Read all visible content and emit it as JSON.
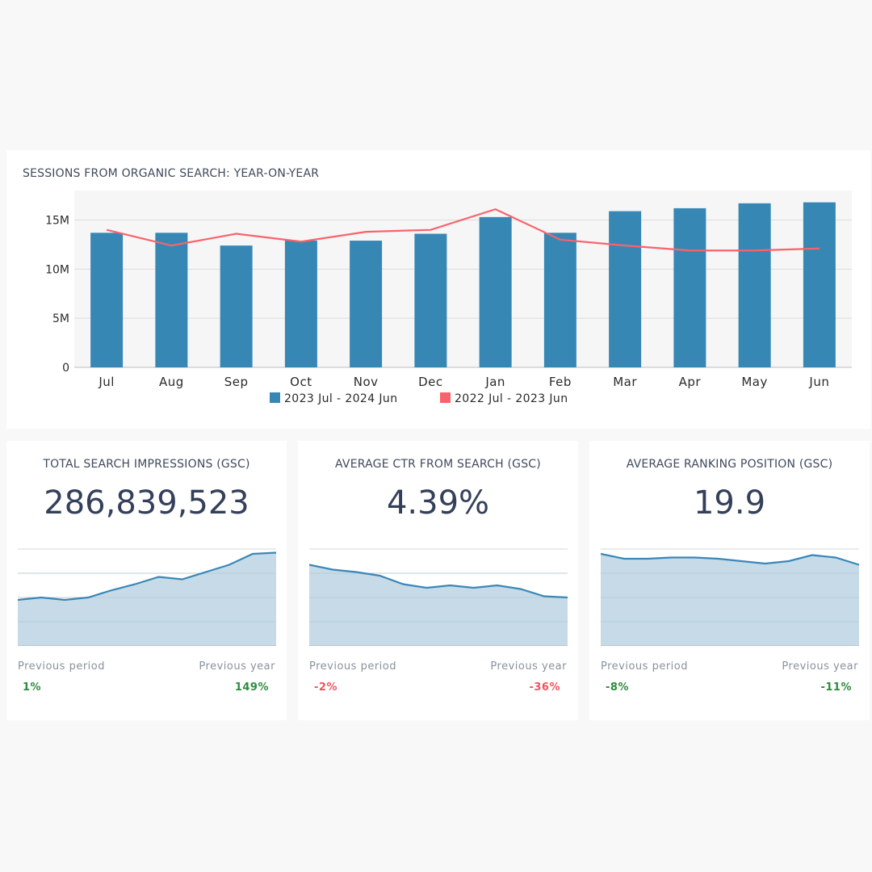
{
  "chart_data": [
    {
      "type": "bar",
      "title": "SESSIONS FROM ORGANIC SEARCH: YEAR-ON-YEAR",
      "categories": [
        "Jul",
        "Aug",
        "Sep",
        "Oct",
        "Nov",
        "Dec",
        "Jan",
        "Feb",
        "Mar",
        "Apr",
        "May",
        "Jun"
      ],
      "series": [
        {
          "name": "2023 Jul - 2024 Jun",
          "type": "bar",
          "color": "#3787b5",
          "values": [
            13.7,
            13.7,
            12.4,
            12.9,
            12.9,
            13.6,
            15.3,
            13.7,
            15.9,
            16.2,
            16.7,
            16.8
          ]
        },
        {
          "name": "2022 Jul - 2023 Jun",
          "type": "line",
          "color": "#f9636b",
          "values": [
            14.0,
            12.4,
            13.6,
            12.8,
            13.8,
            14.0,
            16.1,
            13.0,
            12.4,
            11.9,
            11.9,
            12.1
          ]
        }
      ],
      "ylim": [
        0,
        18
      ],
      "yticks": [
        0,
        5,
        10,
        15
      ],
      "ytick_labels": [
        "0",
        "5M",
        "10M",
        "15M"
      ],
      "xlabel": "",
      "ylabel": "",
      "grid": true,
      "legend": "bottom"
    },
    {
      "type": "area",
      "title": "TOTAL SEARCH IMPRESSIONS (GSC)",
      "values": [
        19,
        20,
        19,
        20,
        23,
        25.5,
        28.5,
        27.5,
        30.5,
        33.5,
        38,
        38.5
      ],
      "ylim": [
        0,
        40
      ],
      "grid": true
    },
    {
      "type": "area",
      "title": "AVERAGE CTR FROM SEARCH (GSC)",
      "values": [
        33.5,
        31.5,
        30.5,
        29,
        25.5,
        24,
        25,
        24,
        25,
        23.5,
        20.5,
        20
      ],
      "ylim": [
        0,
        40
      ],
      "grid": true
    },
    {
      "type": "area",
      "title": "AVERAGE RANKING POSITION (GSC)",
      "values": [
        38,
        36,
        36,
        36.5,
        36.5,
        36,
        35,
        34,
        35,
        37.5,
        36.5,
        33.5
      ],
      "ylim": [
        0,
        40
      ],
      "grid": true
    }
  ],
  "kpis": [
    {
      "title": "TOTAL SEARCH IMPRESSIONS (GSC)",
      "value": "286,839,523",
      "prev_period_label": "Previous period",
      "prev_period_value": "1%",
      "prev_year_label": "Previous year",
      "prev_year_value": "149%"
    },
    {
      "title": "AVERAGE CTR FROM SEARCH (GSC)",
      "value": "4.39%",
      "prev_period_label": "Previous period",
      "prev_period_value": "-2%",
      "prev_year_label": "Previous year",
      "prev_year_value": "-36%"
    },
    {
      "title": "AVERAGE RANKING POSITION (GSC)",
      "value": "19.9",
      "prev_period_label": "Previous period",
      "prev_period_value": "-8%",
      "prev_year_label": "Previous year",
      "prev_year_value": "-11%"
    }
  ],
  "colors": {
    "bar": "#3787b5",
    "line": "#f9636b",
    "spark_line": "#3a87b8",
    "spark_fill": "#c6dbe7",
    "positive": "#2e8b3e",
    "negative": "#f0545e"
  }
}
